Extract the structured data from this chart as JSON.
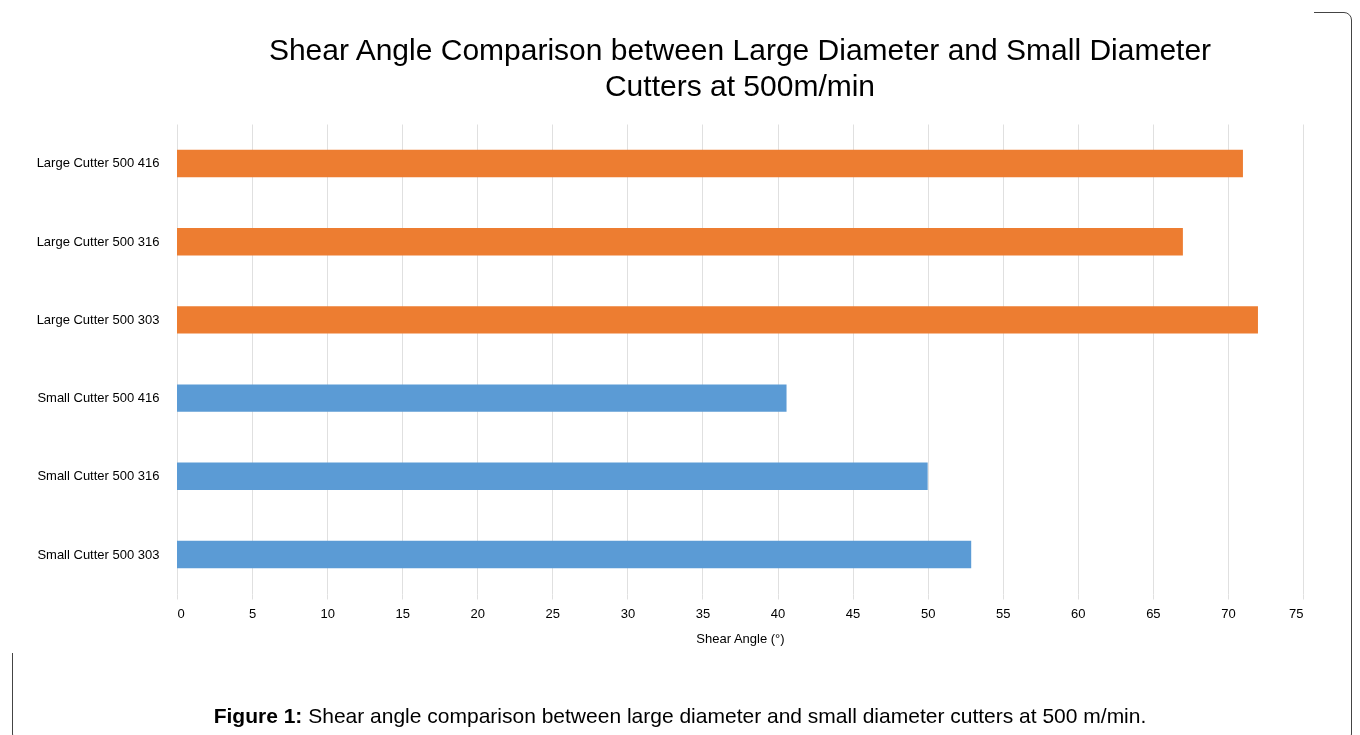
{
  "chart_data": {
    "type": "bar",
    "orientation": "horizontal",
    "title": "Shear Angle Comparison between Large Diameter and Small Diameter Cutters at 500m/min",
    "xlabel": "Shear Angle (°)",
    "categories": [
      "Large Cutter 500 416",
      "Large Cutter 500 316",
      "Large Cutter 500 303",
      "Small Cutter 500 416",
      "Small Cutter 500 316",
      "Small Cutter 500 303"
    ],
    "values": [
      71,
      67,
      72,
      40.6,
      50,
      52.9
    ],
    "colors": [
      "#ed7d31",
      "#ed7d31",
      "#ed7d31",
      "#5b9bd5",
      "#5b9bd5",
      "#5b9bd5"
    ],
    "xlim": [
      0,
      75
    ],
    "xticks": [
      0,
      5,
      10,
      15,
      20,
      25,
      30,
      35,
      40,
      45,
      50,
      55,
      60,
      65,
      70,
      75
    ],
    "grid": "x",
    "annotations": [
      "Figure 1: Shear angle comparison between large diameter and small diameter cutters at 500 m/min."
    ]
  }
}
